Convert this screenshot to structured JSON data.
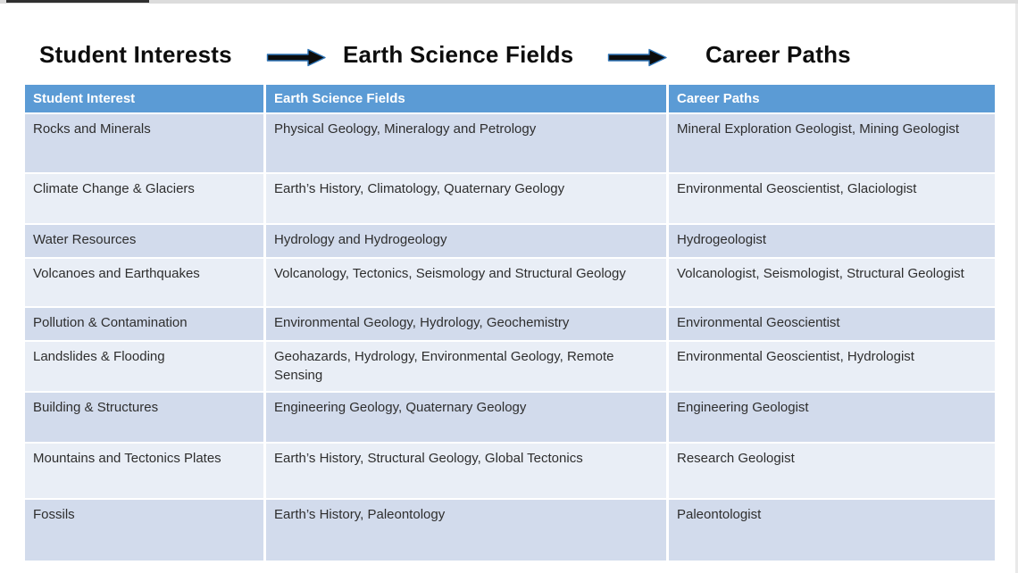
{
  "title_flow": {
    "segments": [
      "Student Interests",
      "Earth Science Fields",
      "Career Paths"
    ],
    "arrow_icon": "right-arrow"
  },
  "colors": {
    "header_bg": "#5B9BD5",
    "band_dark": "#D2DBEC",
    "band_light": "#E9EEF6",
    "arrow_fill": "#0D0D0D",
    "arrow_outline": "#2E74B6",
    "top_edge": "#DCDCDC",
    "top_edge_dark": "#2F2F2F"
  },
  "table": {
    "headers": [
      "Student Interest",
      "Earth Science Fields",
      "Career Paths"
    ],
    "rows": [
      {
        "interest": "Rocks and Minerals",
        "fields": "Physical Geology, Mineralogy and Petrology",
        "careers": "Mineral Exploration Geologist, Mining Geologist"
      },
      {
        "interest": "Climate Change & Glaciers",
        "fields": "Earth’s History, Climatology, Quaternary Geology",
        "careers": "Environmental Geoscientist, Glaciologist"
      },
      {
        "interest": "Water Resources",
        "fields": "Hydrology and Hydrogeology",
        "careers": "Hydrogeologist"
      },
      {
        "interest": "Volcanoes and Earthquakes",
        "fields": "Volcanology, Tectonics, Seismology and Structural Geology",
        "careers": "Volcanologist, Seismologist, Structural Geologist"
      },
      {
        "interest": "Pollution & Contamination",
        "fields": "Environmental Geology, Hydrology, Geochemistry",
        "careers": "Environmental Geoscientist"
      },
      {
        "interest": "Landslides & Flooding",
        "fields": "Geohazards, Hydrology, Environmental Geology, Remote Sensing",
        "careers": "Environmental Geoscientist, Hydrologist"
      },
      {
        "interest": "Building & Structures",
        "fields": "Engineering Geology, Quaternary Geology",
        "careers": "Engineering Geologist"
      },
      {
        "interest": "Mountains and Tectonics Plates",
        "fields": "Earth’s History, Structural Geology, Global Tectonics",
        "careers": "Research Geologist"
      },
      {
        "interest": "Fossils",
        "fields": "Earth’s History, Paleontology",
        "careers": "Paleontologist"
      }
    ]
  }
}
